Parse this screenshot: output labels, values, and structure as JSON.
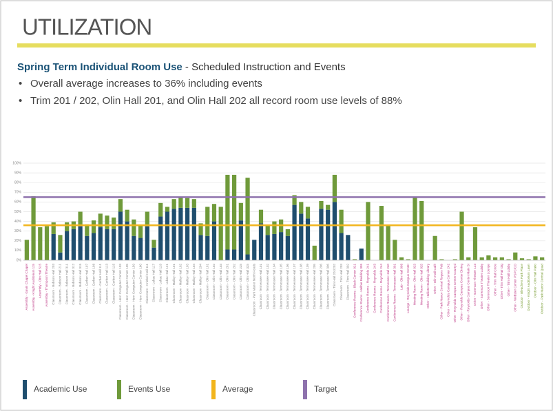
{
  "header": {
    "title": "UTILIZATION"
  },
  "subtitle": {
    "bold": "Spring Term Individual Room Use",
    "rest": " - Scheduled Instruction and Events"
  },
  "bullets": [
    "Overall average increases to 36% including events",
    "Trim 201 / 202, Olin Hall 201, and Olin Hall 202 all record room use levels of 88%"
  ],
  "chart_data": {
    "type": "bar",
    "stacked": true,
    "categories": [
      "Assembly - Gavin Chapel Chapel",
      "Assembly - Knight Auditorium 115",
      "Assembly - Olin Hall 515",
      "Assembly - Thompson Theatre",
      "Classroom - Bobson Hall 203",
      "Classroom - Bobson Hall 211",
      "Classroom - Bobson Hall 311",
      "Classroom - Bobson Hall 312",
      "Classroom - Bobson Hall 315",
      "Classroom - Gerber Hall 107",
      "Classroom - Gerber Hall 108",
      "Classroom - Gerber Hall 111",
      "Classroom - Gerber Hall 113",
      "Classroom - Gerber Hall 115",
      "Classroom - Horn Computer Center 103",
      "Classroom - Horn Computer Center 105",
      "Classroom - Horn Computer Center 159",
      "Classroom - Horn Computer Center 160",
      "Classroom - Kriebel Hall 111",
      "Classroom - Lukac Hall 117",
      "Classroom - Lukac Hall 119",
      "Classroom - Lukac Hall 121",
      "Classroom - Malloy Hall 101",
      "Classroom - Malloy Hall 102",
      "Classroom - Malloy Hall 103",
      "Classroom - Malloy Hall 104",
      "Classroom - Malloy Hall 204",
      "Classroom - Olin Hall 101",
      "Classroom - Olin Hall 102",
      "Classroom - Olin Hall 103",
      "Classroom - Olin Hall 201",
      "Classroom - Olin Hall 202",
      "Classroom - Olin Hall 225",
      "Classroom - Olin Hall 325",
      "Classroom - Park Manor North Foods",
      "Classroom - Tennessee Hall 101",
      "Classroom - Tennessee Hall 102",
      "Classroom - Tennessee Hall 104",
      "Classroom - Tennessee Hall 105",
      "Classroom - Tennessee Hall 106",
      "Classroom - Tennessee Hall 107",
      "Classroom - Tennessee Hall 108",
      "Classroom - Tennessee Hall 109",
      "Classroom - Tennessee Hall 205",
      "Classroom - Tennessee Hall 206",
      "Classroom - Tennessee Hall 306",
      "Classroom - Trim Hall 201/202",
      "Classroom - Trim Hall 203",
      "Classroom - Trim Hall 302",
      "Conference Rooms - Black Center 021",
      "Conference Rooms - Hellbie Building 305",
      "Conference Rooms - Reynolds 241",
      "Conference Rooms - Reynolds 243",
      "Conference Rooms - Reynolds 244",
      "Conference Rooms - Tennessee Hall 240",
      "Conference Rooms - Tennessee Hall 301",
      "Lab - Olin Hall 008",
      "Lounge - Reynolds Campus Center",
      "Meeting Room - Olin Hall 023",
      "Meeting Room - Olin Hall 025",
      "Other - Hollister Building Library",
      "Other - Olin Hall Café",
      "Other - Park Manor Central Rogers Pub",
      "Other - Reynolds Campus Center 242",
      "Other - Reynolds Campus Center Courtyd",
      "Other - Reynolds Campus Center Dining",
      "Other - Reynolds Campus Center Main St",
      "Other - Sorenson Theater 123",
      "Other - Sorenson Theater Lobby",
      "Other - Sorenson Theater Lounge",
      "Other - Trim Hall Circle",
      "Other - Trim Hall Fair Gig",
      "Other - Trim Hall Lobby",
      "Other - Webster Center PSPC/CO",
      "Outdoor - Bleachers Park Place",
      "Outdoor - Knight Auditorium Lawn",
      "Outdoor - Olin Hall Patio",
      "Outdoor - Park Manor Central Quad"
    ],
    "series": [
      {
        "name": "Academic Use",
        "color": "#1f4e6e",
        "values": [
          0,
          0,
          0,
          0,
          27,
          8,
          30,
          32,
          35,
          25,
          28,
          34,
          32,
          32,
          50,
          40,
          25,
          23,
          35,
          13,
          45,
          50,
          53,
          54,
          54,
          54,
          26,
          25,
          40,
          0,
          11,
          11,
          41,
          6,
          21,
          38,
          26,
          27,
          29,
          25,
          57,
          48,
          43,
          0,
          53,
          52,
          60,
          28,
          26,
          0,
          12,
          0,
          0,
          0,
          0,
          0,
          0,
          0,
          0,
          0,
          0,
          0,
          0,
          0,
          0,
          0,
          0,
          0,
          0,
          0,
          0,
          0,
          0,
          0,
          0,
          0,
          0,
          0
        ]
      },
      {
        "name": "Events Use",
        "color": "#6f9a3a",
        "values": [
          21,
          66,
          34,
          35,
          12,
          18,
          9,
          8,
          15,
          12,
          13,
          14,
          14,
          12,
          13,
          12,
          17,
          13,
          15,
          8,
          14,
          5,
          10,
          11,
          10,
          9,
          12,
          30,
          18,
          55,
          77,
          77,
          18,
          79,
          0,
          14,
          10,
          13,
          13,
          7,
          10,
          12,
          12,
          15,
          8,
          5,
          28,
          24,
          0,
          1,
          0,
          60,
          0,
          56,
          36,
          21,
          3,
          1,
          65,
          61,
          0,
          25,
          1,
          0,
          1,
          50,
          3,
          34,
          3,
          5,
          3,
          3,
          1,
          8,
          2,
          1,
          4,
          3
        ]
      }
    ],
    "reference_lines": [
      {
        "name": "Average",
        "value": 36,
        "color": "#f2b51c"
      },
      {
        "name": "Target",
        "value": 65,
        "color": "#8e72ad"
      }
    ],
    "ylim": [
      0,
      100
    ],
    "yticks": [
      {
        "value": 0,
        "label": "0%"
      },
      {
        "value": 10,
        "label": "10%"
      },
      {
        "value": 20,
        "label": "20%"
      },
      {
        "value": 30,
        "label": "30%"
      },
      {
        "value": 40,
        "label": "40%"
      },
      {
        "value": 50,
        "label": "50%"
      },
      {
        "value": 60,
        "label": "60%"
      },
      {
        "value": 70,
        "label": "70%"
      },
      {
        "value": 80,
        "label": "80%"
      },
      {
        "value": 90,
        "label": "90%"
      },
      {
        "value": 100,
        "label": "100%"
      }
    ],
    "grid": true
  }
}
